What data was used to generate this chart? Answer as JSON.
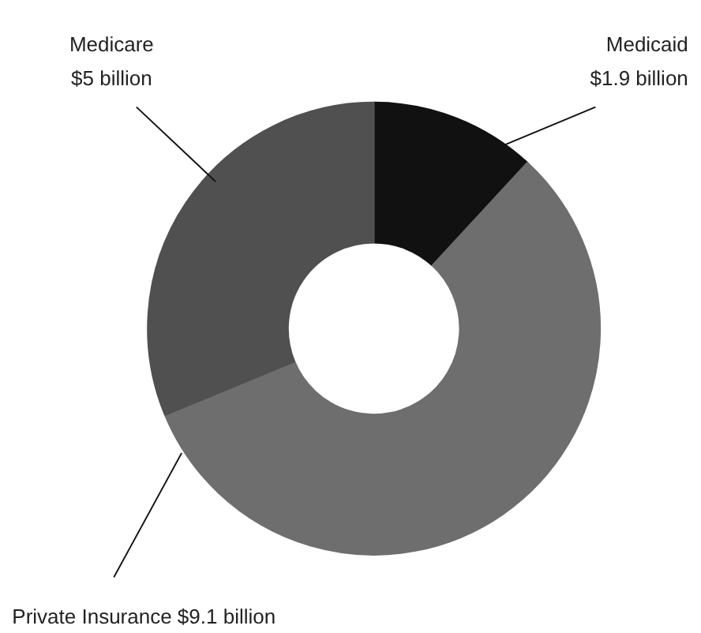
{
  "chart_data": {
    "type": "donut",
    "categories": [
      "Medicaid",
      "Private Insurance",
      "Medicare"
    ],
    "values": [
      1.9,
      9.1,
      5
    ],
    "value_labels": [
      "$1.9 billion",
      "$9.1 billion",
      "$5 billion"
    ],
    "colors": [
      "#111111",
      "#6e6e6e",
      "#505050"
    ]
  }
}
